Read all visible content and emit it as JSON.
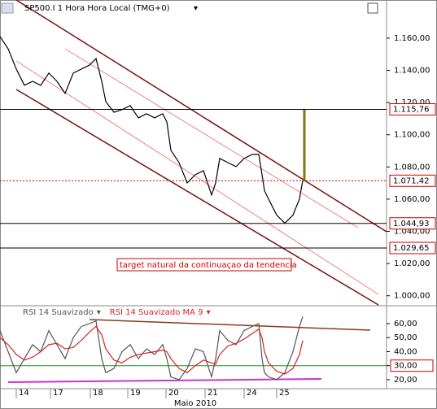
{
  "chart_data": [
    {
      "type": "line",
      "title": "SP500.I 1 Hora Hora Local (TMG+0)",
      "color": "#000000",
      "x": [
        0,
        2,
        4,
        6,
        8,
        10,
        12,
        14,
        16,
        18,
        20,
        22,
        23.6,
        25,
        26,
        28,
        30,
        32,
        34,
        36,
        38,
        40,
        41,
        42,
        44,
        46,
        48,
        50,
        52,
        53,
        54,
        56,
        58,
        60,
        62,
        63.6,
        64.4,
        65,
        66,
        68,
        70,
        72,
        73.6,
        74.4
      ],
      "values": [
        1161.0,
        1153.4,
        1140.8,
        1130.7,
        1133.2,
        1130.7,
        1138.3,
        1133.2,
        1125.7,
        1138.3,
        1140.8,
        1143.3,
        1147.3,
        1133.2,
        1120.6,
        1114.0,
        1115.6,
        1118.1,
        1110.5,
        1113.0,
        1110.5,
        1113.0,
        1108.0,
        1090.3,
        1082.7,
        1070.1,
        1075.2,
        1077.7,
        1062.6,
        1070.1,
        1085.3,
        1082.7,
        1080.2,
        1085.3,
        1087.8,
        1087.8,
        1075.2,
        1065.2,
        1060.1,
        1050.1,
        1045.1,
        1050.1,
        1060.1,
        1071.6
      ],
      "xlim": [
        0,
        95
      ],
      "ylim": [
        994.3,
        1183.7
      ],
      "yticks": [
        {
          "value": 1000,
          "label": "1.000,00"
        },
        {
          "value": 1020,
          "label": "1.020,00"
        },
        {
          "value": 1040,
          "label": "1.040,00"
        },
        {
          "value": 1060,
          "label": "1.060,00"
        },
        {
          "value": 1080,
          "label": "1.080,00"
        },
        {
          "value": 1100,
          "label": "1.100,00"
        },
        {
          "value": 1120,
          "label": "1.120,00"
        },
        {
          "value": 1140,
          "label": "1.140,00"
        },
        {
          "value": 1160,
          "label": "1.160,00"
        }
      ],
      "levels": [
        {
          "value": 1115.76,
          "label": "1.115,76",
          "color": "#000000"
        },
        {
          "value": 1071.42,
          "label": "1.071,42",
          "color": "#cc0000"
        },
        {
          "value": 1044.93,
          "label": "1.044,93",
          "color": "#000000"
        },
        {
          "value": 1029.65,
          "label": "1.029,65",
          "color": "#000000"
        }
      ],
      "xticks": [
        {
          "value": 4,
          "label": "14"
        },
        {
          "value": 12.4,
          "label": "17"
        },
        {
          "value": 22.2,
          "label": "18"
        },
        {
          "value": 31.4,
          "label": "19"
        },
        {
          "value": 40.8,
          "label": "20"
        },
        {
          "value": 50.4,
          "label": "21"
        },
        {
          "value": 60,
          "label": "24"
        },
        {
          "value": 68,
          "label": "25"
        }
      ],
      "xlabel": "Maio 2010",
      "annotation": "target natural da continuaçao da tendencia"
    },
    {
      "type": "line",
      "x": [
        0,
        2,
        4,
        6,
        8,
        10,
        12,
        14,
        16,
        18,
        20,
        22,
        23.6,
        25,
        26,
        28,
        30,
        32,
        34,
        36,
        38,
        40,
        41,
        42,
        44,
        46,
        48,
        50,
        52,
        53,
        54,
        56,
        58,
        60,
        62,
        63.6,
        64.4,
        65,
        66,
        68,
        70,
        72,
        73.6,
        74.4
      ],
      "series": [
        {
          "name": "RSI 14 Suavizado",
          "color": "#555555",
          "values": [
            55,
            40,
            25,
            35,
            45,
            40,
            55,
            45,
            35,
            50,
            58,
            60,
            62,
            35,
            25,
            28,
            40,
            45,
            35,
            42,
            38,
            45,
            35,
            22,
            20,
            28,
            42,
            40,
            22,
            35,
            55,
            48,
            45,
            55,
            58,
            60,
            35,
            25,
            22,
            20,
            25,
            40,
            58,
            65
          ]
        },
        {
          "name": "RSI 14 Suavizado MA 9",
          "color": "#dd2222",
          "values": [
            50,
            45,
            38,
            34,
            36,
            40,
            45,
            46,
            42,
            43,
            48,
            54,
            58,
            52,
            42,
            34,
            32,
            36,
            38,
            39,
            40,
            41,
            40,
            35,
            28,
            25,
            30,
            34,
            32,
            31,
            38,
            44,
            46,
            49,
            53,
            56,
            50,
            40,
            32,
            26,
            24,
            28,
            38,
            48
          ]
        }
      ],
      "xlim": [
        0,
        95
      ],
      "ylim": [
        13.6,
        71.6
      ],
      "yticks": [
        {
          "value": 20,
          "label": "20,00"
        },
        {
          "value": 30,
          "label": "30,00"
        },
        {
          "value": 40,
          "label": "40,00"
        },
        {
          "value": 50,
          "label": "50,00"
        },
        {
          "value": 60,
          "label": "60,00"
        }
      ],
      "highlight_tick": 1
    }
  ]
}
